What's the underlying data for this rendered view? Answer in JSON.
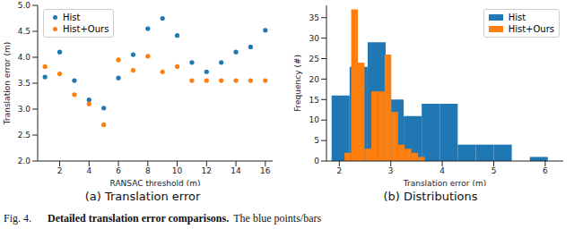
{
  "chart_data": [
    {
      "type": "scatter",
      "title": "(a) Translation error",
      "x_label": "RANSAC threshold (m)",
      "y_label": "Translation error (m)",
      "x": [
        1,
        2,
        3,
        4,
        5,
        6,
        7,
        8,
        9,
        10,
        11,
        12,
        13,
        14,
        15,
        16
      ],
      "series": [
        {
          "name": "Hist",
          "color": "#1f77b4",
          "marker": "circle",
          "values": [
            3.62,
            4.1,
            3.55,
            3.18,
            3.02,
            3.6,
            4.05,
            4.55,
            4.75,
            4.42,
            3.9,
            3.72,
            3.9,
            4.1,
            4.2,
            4.52
          ]
        },
        {
          "name": "Hist+Ours",
          "color": "#ff7f0e",
          "marker": "circle",
          "values": [
            3.82,
            3.68,
            3.28,
            3.1,
            2.7,
            3.95,
            3.75,
            4.02,
            3.72,
            3.82,
            3.55,
            3.55,
            3.55,
            3.55,
            3.55,
            3.55
          ]
        }
      ],
      "xlim": [
        0.5,
        16.5
      ],
      "xticks": [
        2,
        4,
        6,
        8,
        10,
        12,
        14,
        16
      ],
      "ylim": [
        2,
        5
      ],
      "yticks": [
        {
          "value": 2,
          "label": "2.0"
        },
        {
          "value": 2.5,
          "label": "2.5"
        },
        {
          "value": 3,
          "label": "3.0"
        },
        {
          "value": 3.5,
          "label": "3.5"
        },
        {
          "value": 4,
          "label": "4.0"
        },
        {
          "value": 4.5,
          "label": "4.5"
        },
        {
          "value": 5,
          "label": "5.0"
        }
      ],
      "legend": "upper left",
      "grid": false
    },
    {
      "type": "histogram",
      "title": "(b) Distributions",
      "x_label": "Translation error (m)",
      "y_label": "Frequency (#)",
      "series": [
        {
          "name": "Hist",
          "color": "#1f77b4",
          "bins": [
            1.85,
            2.2,
            2.55,
            2.9,
            3.25,
            3.6,
            3.95,
            4.3,
            4.65,
            5.0,
            5.35,
            5.7,
            6.05
          ],
          "values": [
            16,
            23,
            29,
            15,
            11,
            14,
            14,
            4,
            4,
            4,
            0,
            1
          ]
        },
        {
          "name": "Hist+Ours",
          "color": "#ff7f0e",
          "bins": [
            2.1,
            2.23,
            2.36,
            2.49,
            2.62,
            2.75,
            2.88,
            3.01,
            3.14,
            3.27,
            3.4,
            3.53,
            3.66
          ],
          "values": [
            2,
            37,
            24,
            3,
            17,
            17,
            26,
            12,
            4,
            3,
            2,
            1
          ]
        }
      ],
      "xlim": [
        1.75,
        6.35
      ],
      "xticks": [
        2,
        3,
        4,
        5,
        6
      ],
      "ylim": [
        0,
        38
      ],
      "yticks": [
        0,
        5,
        10,
        15,
        20,
        25,
        30,
        35
      ],
      "legend": "upper right",
      "grid": false
    }
  ],
  "caption": {
    "label": "Fig. 4.",
    "bold": "Detailed translation error comparisons.",
    "text": "The blue points/bars"
  }
}
